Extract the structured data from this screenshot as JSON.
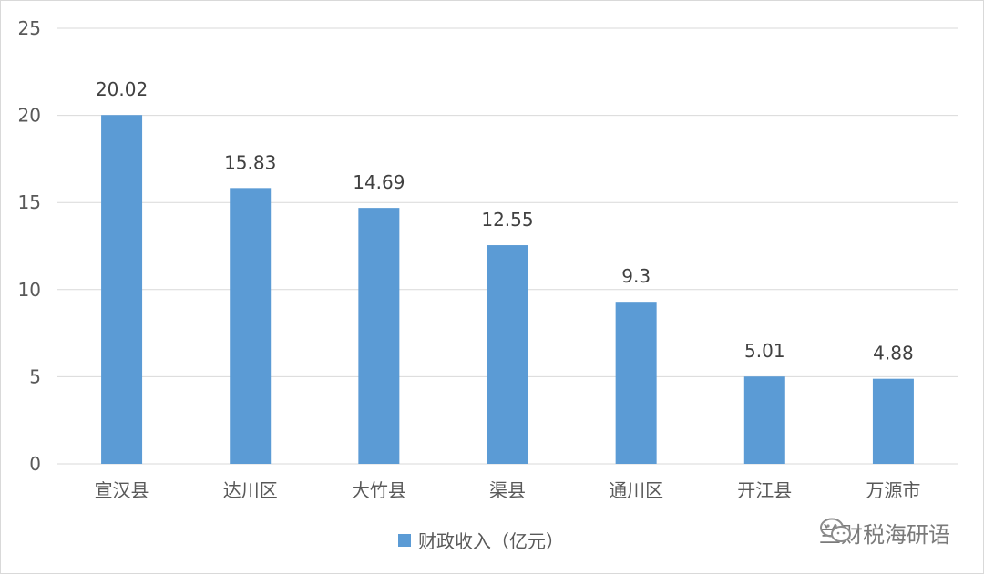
{
  "chart_data": {
    "type": "bar",
    "categories": [
      "宣汉县",
      "达川区",
      "大竹县",
      "渠县",
      "通川区",
      "开江县",
      "万源市"
    ],
    "series": [
      {
        "name": "财政收入（亿元）",
        "values": [
          20.02,
          15.83,
          14.69,
          12.55,
          9.3,
          5.01,
          4.88
        ],
        "color": "#5b9bd5"
      }
    ],
    "data_labels": [
      "20.02",
      "15.83",
      "14.69",
      "12.55",
      "9.3",
      "5.01",
      "4.88"
    ],
    "title": "",
    "xlabel": "",
    "ylabel": "",
    "ylim": [
      0,
      25
    ],
    "yticks": [
      0,
      5,
      10,
      15,
      20,
      25
    ],
    "grid": true,
    "legend_position": "bottom"
  },
  "legend": {
    "label": "财政收入（亿元）",
    "color": "#5b9bd5"
  },
  "watermark": {
    "text": "兰财税海研语",
    "icon": "wechat-icon"
  }
}
